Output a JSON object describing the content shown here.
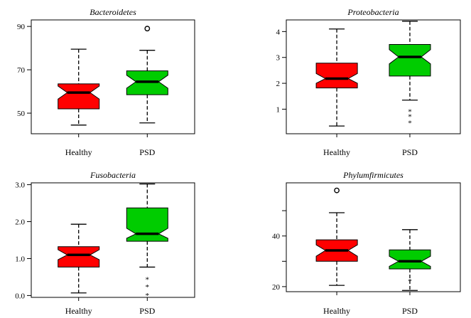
{
  "chart_data": [
    {
      "type": "boxplot",
      "title": "Bacteroidetes",
      "categories": [
        "Healthy",
        "PSD"
      ],
      "ylim": [
        40.5,
        93
      ],
      "yticks": [
        50,
        70,
        90
      ],
      "ytick_labels": [
        "50",
        "70",
        "90"
      ],
      "series": [
        {
          "category": "Healthy",
          "color": "#ff0000",
          "whisker_low": 44.5,
          "q1": 52,
          "notch_low": 56.5,
          "median": 59.5,
          "notch_high": 62.5,
          "q3": 63.5,
          "whisker_high": 79.5,
          "outliers": []
        },
        {
          "category": "PSD",
          "color": "#00cc00",
          "whisker_low": 45.5,
          "q1": 58.5,
          "notch_low": 61.5,
          "median": 64.5,
          "notch_high": 67.5,
          "q3": 69.5,
          "whisker_high": 79,
          "outliers": [
            {
              "value": 89,
              "marker": "circle"
            }
          ]
        }
      ]
    },
    {
      "type": "boxplot",
      "title": "Proteobacteria",
      "categories": [
        "Healthy",
        "PSD"
      ],
      "ylim": [
        0.05,
        4.45
      ],
      "yticks": [
        1,
        2,
        3,
        4
      ],
      "ytick_labels": [
        "1",
        "2",
        "3",
        "4"
      ],
      "series": [
        {
          "category": "Healthy",
          "color": "#ff0000",
          "whisker_low": 0.35,
          "q1": 1.82,
          "notch_low": 2.0,
          "median": 2.18,
          "notch_high": 2.38,
          "q3": 2.78,
          "whisker_high": 4.1,
          "outliers": []
        },
        {
          "category": "PSD",
          "color": "#00cc00",
          "whisker_low": 1.35,
          "q1": 2.28,
          "notch_low": 2.75,
          "median": 3.02,
          "notch_high": 3.3,
          "q3": 3.5,
          "whisker_high": 4.4,
          "outliers": [
            {
              "value": 0.95,
              "marker": "asterisk"
            },
            {
              "value": 0.75,
              "marker": "asterisk"
            },
            {
              "value": 0.5,
              "marker": "asterisk"
            }
          ]
        }
      ]
    },
    {
      "type": "boxplot",
      "title": "Fusobacteria",
      "categories": [
        "Healthy",
        "PSD"
      ],
      "ylim": [
        -0.05,
        3.05
      ],
      "yticks": [
        0,
        1,
        2,
        3
      ],
      "ytick_labels": [
        "0.0",
        "1.0",
        "2.0",
        "3.0"
      ],
      "series": [
        {
          "category": "Healthy",
          "color": "#ff0000",
          "whisker_low": 0.07,
          "q1": 0.77,
          "notch_low": 0.97,
          "median": 1.1,
          "notch_high": 1.24,
          "q3": 1.32,
          "whisker_high": 1.93,
          "outliers": []
        },
        {
          "category": "PSD",
          "color": "#00cc00",
          "whisker_low": 0.77,
          "q1": 1.47,
          "notch_low": 1.55,
          "median": 1.67,
          "notch_high": 1.82,
          "q3": 2.37,
          "whisker_high": 3.02,
          "outliers": [
            {
              "value": 0.46,
              "marker": "asterisk"
            },
            {
              "value": 0.26,
              "marker": "asterisk"
            },
            {
              "value": 0.03,
              "marker": "asterisk"
            }
          ]
        }
      ]
    },
    {
      "type": "boxplot",
      "title": "Phylumfirmicutes",
      "categories": [
        "Healthy",
        "PSD"
      ],
      "ylim": [
        18,
        61
      ],
      "yticks": [
        20,
        40
      ],
      "ytick_labels": [
        "20",
        "40"
      ],
      "minor_yticks": [
        30,
        50
      ],
      "series": [
        {
          "category": "Healthy",
          "color": "#ff0000",
          "whisker_low": 20.5,
          "q1": 30,
          "notch_low": 32,
          "median": 34.3,
          "notch_high": 36.5,
          "q3": 38.5,
          "whisker_high": 49.2,
          "outliers": [
            {
              "value": 58,
              "marker": "circle"
            }
          ]
        },
        {
          "category": "PSD",
          "color": "#00cc00",
          "whisker_low": 18.5,
          "q1": 27,
          "notch_low": 28,
          "median": 30,
          "notch_high": 32,
          "q3": 34.5,
          "whisker_high": 42.5,
          "outliers": [
            {
              "value": 22.5,
              "marker": "asterisk"
            }
          ]
        }
      ]
    }
  ]
}
